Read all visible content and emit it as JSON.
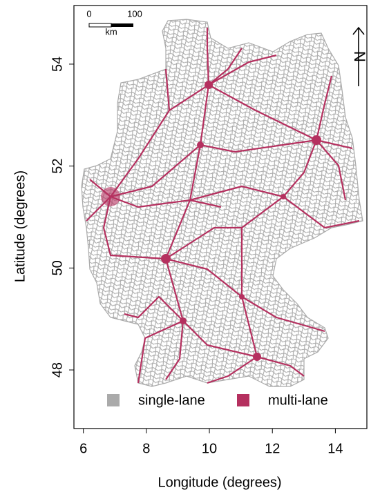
{
  "chart_data": {
    "type": "map",
    "x_label": "Longitude (degrees)",
    "y_label": "Latitude (degrees)",
    "xlim": [
      5.7,
      15.0
    ],
    "ylim": [
      46.85,
      55.15
    ],
    "xticks": [
      6,
      8,
      10,
      12,
      14
    ],
    "yticks": [
      48,
      50,
      52,
      54
    ],
    "series": [
      {
        "name": "single-lane",
        "color": "#aaaaaa"
      },
      {
        "name": "multi-lane",
        "color": "#b5305f"
      }
    ],
    "scale_bar": {
      "labels": [
        0,
        100
      ],
      "unit": "km"
    },
    "north_label": "N"
  }
}
